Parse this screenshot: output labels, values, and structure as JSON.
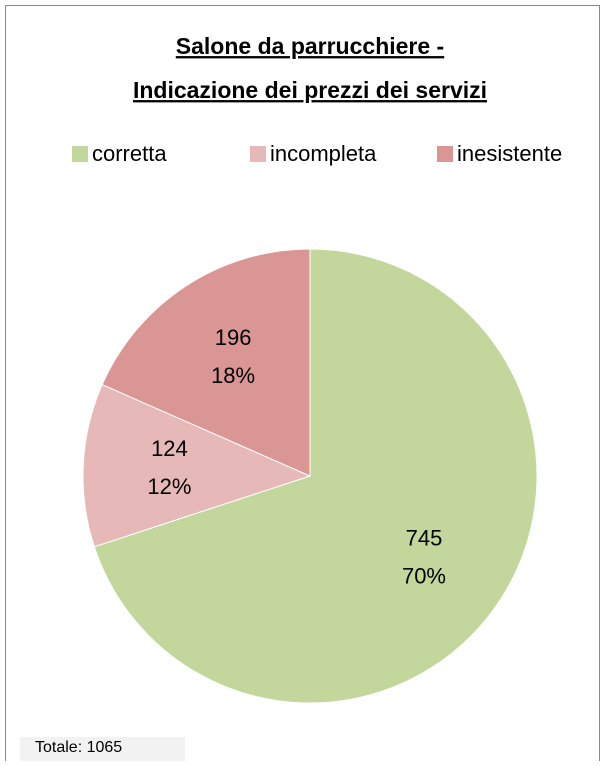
{
  "chart_data": {
    "type": "pie",
    "title": [
      "Salone da parrucchiere -",
      "Indicazione dei prezzi dei servizi"
    ],
    "categories": [
      "corretta",
      "incompleta",
      "inesistente"
    ],
    "values": [
      745,
      124,
      196
    ],
    "percent_labels": [
      "70%",
      "12%",
      "18%"
    ],
    "colors": [
      "#c3d69b",
      "#e6b9b8",
      "#d99694"
    ],
    "legend": "top",
    "annotation": "Totale: 1065"
  }
}
